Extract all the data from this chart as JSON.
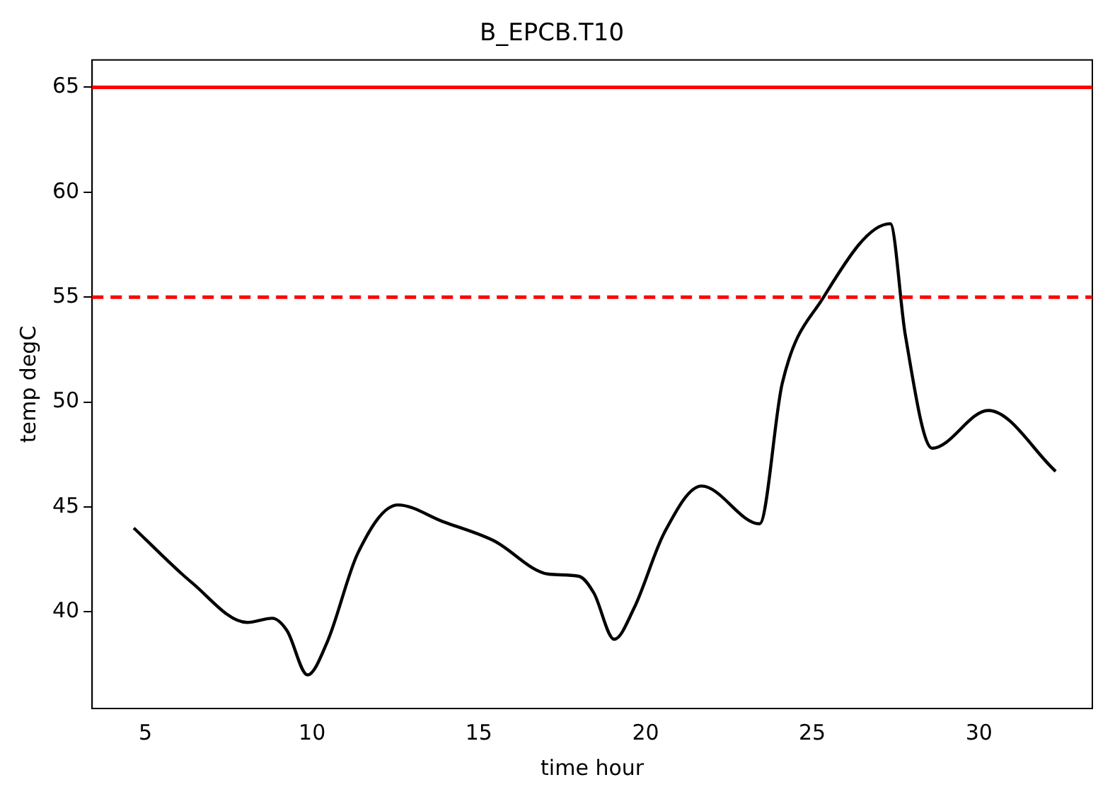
{
  "chart_data": {
    "type": "line",
    "title": "B_EPCB.T10",
    "xlabel": "time hour",
    "ylabel": "temp degC",
    "x": [
      4.65,
      6.39,
      8.05,
      8.8,
      9.25,
      9.86,
      10.46,
      11.37,
      12.57,
      13.93,
      15.44,
      17.1,
      18.0,
      18.45,
      19.06,
      19.66,
      20.57,
      21.68,
      23.42,
      24.1,
      25.3,
      27.34,
      27.79,
      28.6,
      30.28,
      32.3
    ],
    "series": [
      {
        "color": "#000000",
        "values": [
          44.0,
          41.4,
          39.5,
          39.7,
          39.1,
          37.0,
          38.6,
          42.8,
          45.1,
          44.3,
          43.4,
          41.8,
          41.7,
          40.9,
          38.7,
          40.2,
          43.8,
          46.0,
          44.2,
          50.9,
          54.9,
          58.5,
          53.2,
          47.8,
          49.6,
          46.7
        ]
      }
    ],
    "xlim": [
      3.4,
      33.4
    ],
    "xticks": [
      5,
      10,
      15,
      20,
      25,
      30
    ],
    "ylim": [
      35.4,
      66.3
    ],
    "yticks": [
      40,
      45,
      50,
      55,
      60,
      65
    ],
    "ref_lines": [
      {
        "axis": "y",
        "value": 65,
        "color": "#ff0000",
        "line_style": "solid"
      },
      {
        "axis": "y",
        "value": 55,
        "color": "#ff0000",
        "line_style": "dashed"
      }
    ],
    "grid": false,
    "legend": false,
    "marker": "none",
    "line_style": "solid"
  }
}
